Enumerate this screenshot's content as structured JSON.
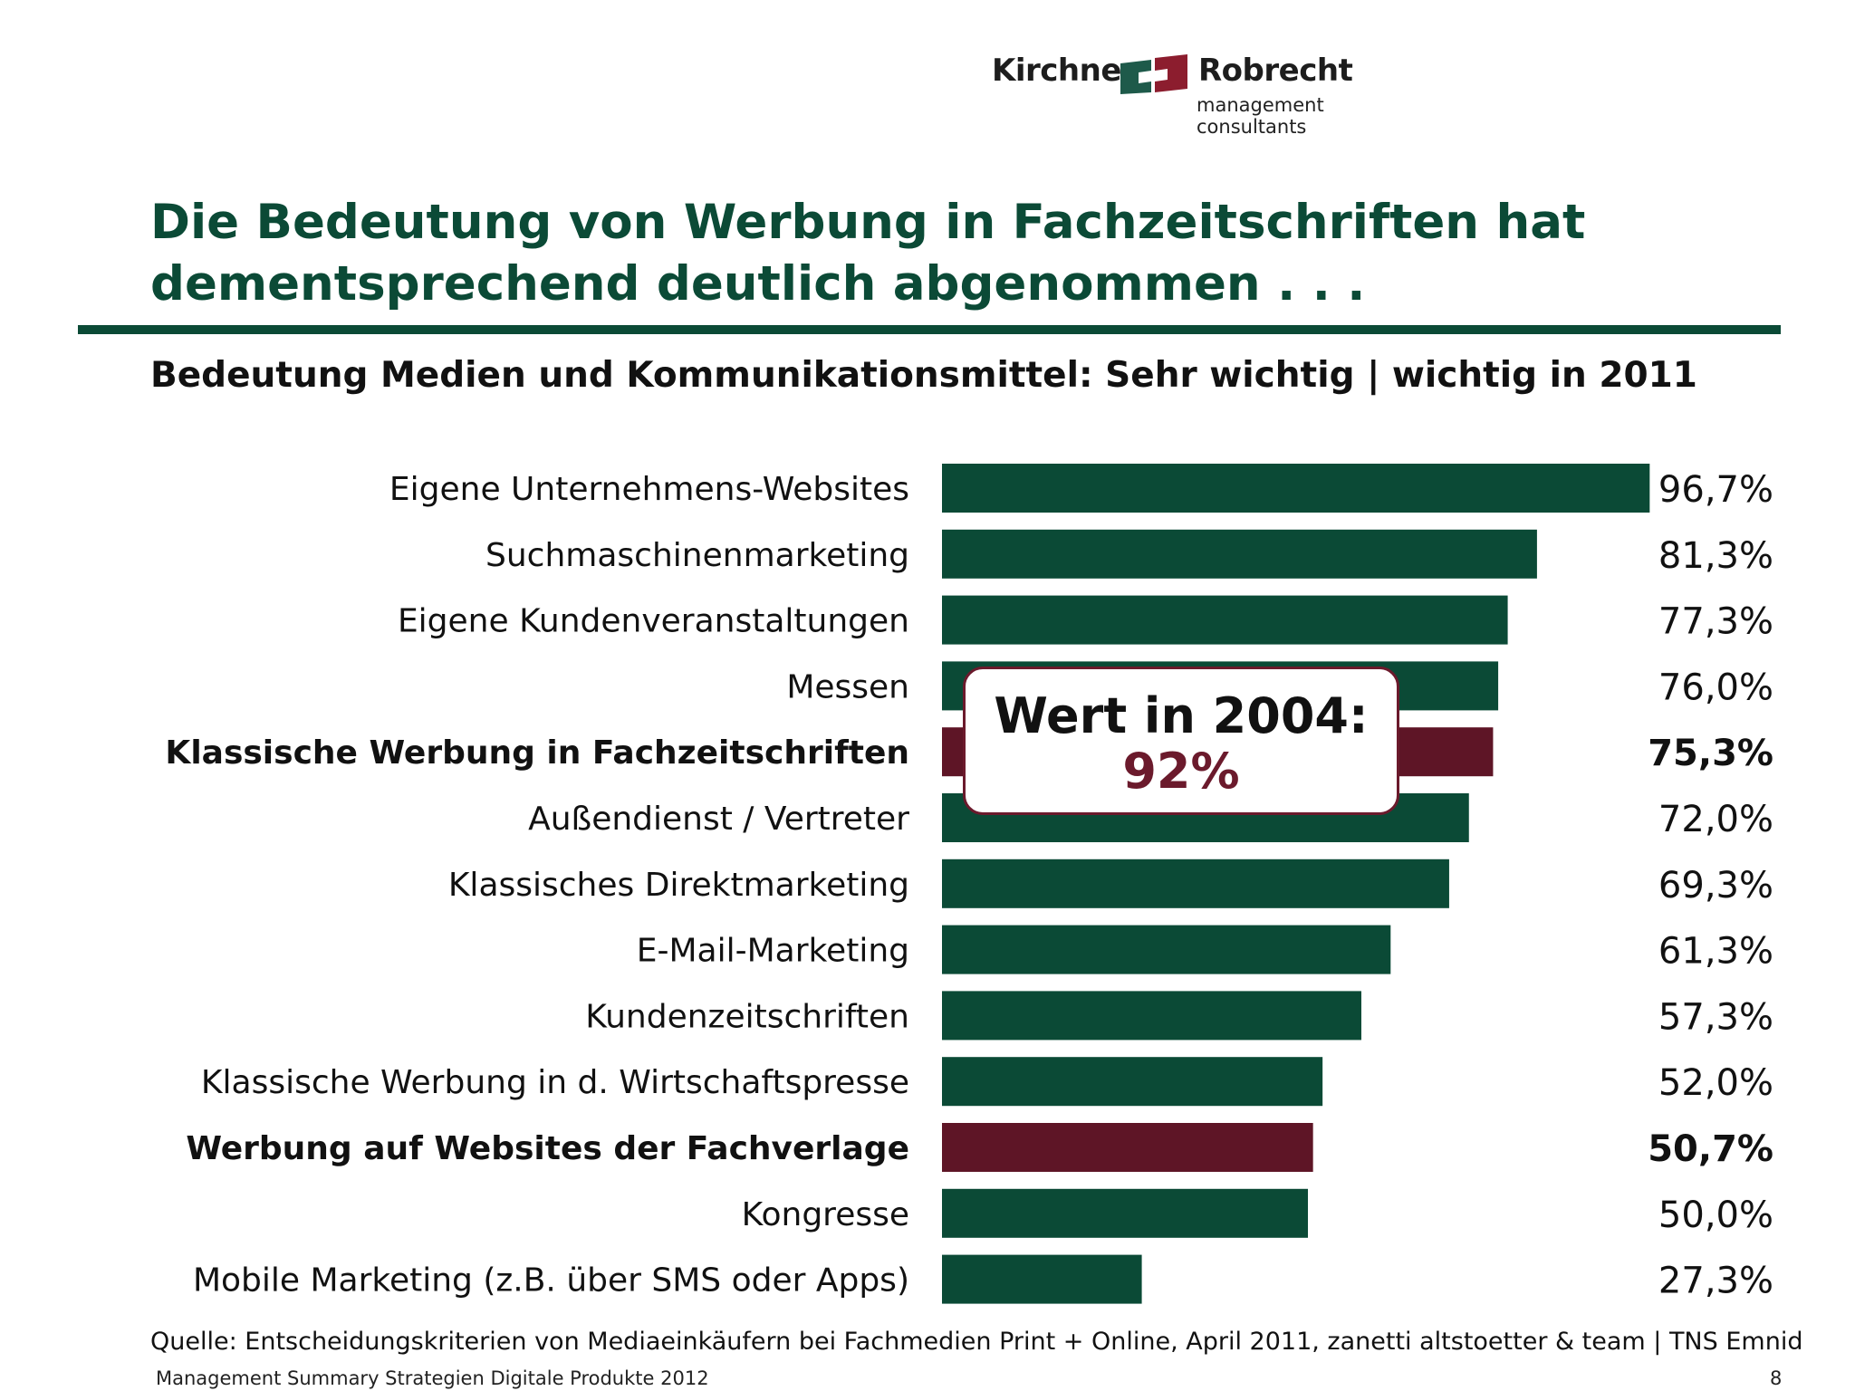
{
  "logo": {
    "left_text": "Kirchner",
    "right_text": "Robrecht",
    "subtitle": "management consultants",
    "colors": {
      "green": "#1e5a4a",
      "red": "#8c1d2e"
    }
  },
  "title": "Die Bedeutung von Werbung in Fachzeitschriften hat dementsprechend deutlich abgenommen . . .",
  "subtitle": "Bedeutung Medien und Kommunikationsmittel: Sehr wichtig | wichtig in 2011",
  "callout": {
    "title": "Wert in 2004:",
    "value": "92%"
  },
  "colors": {
    "primary": "#0b4a36",
    "highlight": "#5e1526",
    "callout_border": "#6b1a2c"
  },
  "chart_data": {
    "type": "bar",
    "orientation": "horizontal",
    "categories": [
      "Eigene Unternehmens-Websites",
      "Suchmaschinenmarketing",
      "Eigene Kundenveranstaltungen",
      "Messen",
      "Klassische Werbung in Fachzeitschriften",
      "Außendienst / Vertreter",
      "Klassisches Direktmarketing",
      "E-Mail-Marketing",
      "Kundenzeitschriften",
      "Klassische Werbung in d. Wirtschaftspresse",
      "Werbung auf Websites der Fachverlage",
      "Kongresse",
      "Mobile Marketing (z.B. über SMS oder Apps)"
    ],
    "values": [
      96.7,
      81.3,
      77.3,
      76.0,
      75.3,
      72.0,
      69.3,
      61.3,
      57.3,
      52.0,
      50.7,
      50.0,
      27.3
    ],
    "value_labels": [
      "96,7%",
      "81,3%",
      "77,3%",
      "76,0%",
      "75,3%",
      "72,0%",
      "69,3%",
      "61,3%",
      "57,3%",
      "52,0%",
      "50,7%",
      "50,0%",
      "27,3%"
    ],
    "highlighted": [
      false,
      false,
      false,
      false,
      true,
      false,
      false,
      false,
      false,
      false,
      true,
      false,
      false
    ],
    "unit": "%",
    "xlim": [
      0,
      100
    ]
  },
  "source": "Quelle: Entscheidungskriterien von Mediaeinkäufern bei Fachmedien Print + Online, April 2011, zanetti altstoetter & team | TNS Emnid",
  "footer": "Management Summary Strategien Digitale Produkte 2012",
  "page_number": "8"
}
